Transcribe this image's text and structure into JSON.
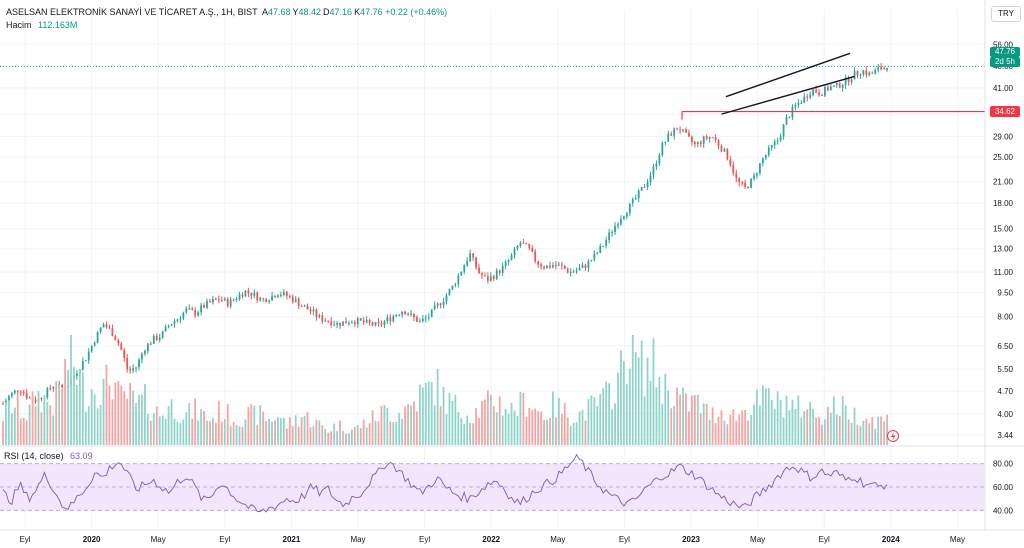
{
  "header": {
    "symbol": "ASELSAN ELEKTRONİK SANAYİ VE TİCARET A.Ş., 1H, BIST",
    "ohlc": [
      {
        "label": "A",
        "value": "47.68"
      },
      {
        "label": "Y",
        "value": "48.42"
      },
      {
        "label": "D",
        "value": "47.16"
      },
      {
        "label": "K",
        "value": "47.76"
      }
    ],
    "change": "+0.22 (+0.46%)",
    "volume_label": "Hacim",
    "volume_value": "112.163M",
    "currency": "TRY"
  },
  "rsi": {
    "label": "RSI (14, close)",
    "value": "63.09",
    "levels": [
      80,
      60,
      40
    ]
  },
  "price_tags": {
    "last": "47.76",
    "countdown": "2d 5h",
    "resistance": "34.62"
  },
  "colors": {
    "up": "#26a69a",
    "down": "#ef5350",
    "vol_up": "#8fd3c9",
    "vol_down": "#f5a3a3",
    "rsi_line": "#7e57c2",
    "rsi_band": "#f3e5fb",
    "resistance": "#f23645",
    "last": "#089981"
  },
  "chart_data": {
    "type": "candlestick",
    "scale": "log",
    "ylim": [
      3.2,
      62
    ],
    "y_ticks": [
      "56.00",
      "48.00",
      "41.00",
      "34.00",
      "29.00",
      "25.00",
      "21.00",
      "18.00",
      "15.00",
      "13.00",
      "11.00",
      "9.50",
      "8.00",
      "6.50",
      "5.50",
      "4.70",
      "4.00",
      "3.44"
    ],
    "y_tick_values": [
      56,
      48,
      41,
      34,
      29,
      25,
      21,
      18,
      15,
      13,
      11,
      9.5,
      8,
      6.5,
      5.5,
      4.7,
      4,
      3.44
    ],
    "x_ticks": [
      {
        "label": "Eyl",
        "bold": false
      },
      {
        "label": "2020",
        "bold": true
      },
      {
        "label": "May",
        "bold": false
      },
      {
        "label": "Eyl",
        "bold": false
      },
      {
        "label": "2021",
        "bold": true
      },
      {
        "label": "May",
        "bold": false
      },
      {
        "label": "Eyl",
        "bold": false
      },
      {
        "label": "2022",
        "bold": true
      },
      {
        "label": "May",
        "bold": false
      },
      {
        "label": "Eyl",
        "bold": false
      },
      {
        "label": "2023",
        "bold": true
      },
      {
        "label": "May",
        "bold": false
      },
      {
        "label": "Eyl",
        "bold": false
      },
      {
        "label": "2024",
        "bold": true
      },
      {
        "label": "May",
        "bold": false
      }
    ],
    "price_path": [
      4.3,
      4.6,
      4.8,
      4.5,
      4.4,
      4.6,
      4.9,
      4.8,
      5.0,
      5.5,
      6.0,
      6.8,
      7.6,
      7.2,
      6.5,
      5.4,
      5.6,
      6.4,
      6.8,
      7.0,
      7.6,
      7.9,
      8.4,
      8.2,
      8.6,
      8.9,
      9.1,
      8.8,
      9.2,
      9.6,
      9.4,
      9.0,
      9.2,
      9.5,
      9.3,
      9.0,
      8.6,
      8.3,
      7.9,
      7.8,
      7.6,
      7.7,
      7.8,
      7.7,
      7.6,
      7.5,
      7.8,
      8.1,
      8.4,
      8.0,
      7.7,
      8.0,
      8.6,
      9.2,
      10.0,
      11.2,
      12.5,
      11.0,
      10.4,
      10.8,
      11.4,
      12.3,
      13.6,
      13.0,
      11.8,
      11.4,
      11.6,
      11.4,
      11.0,
      11.2,
      11.6,
      12.4,
      13.4,
      14.8,
      16.2,
      17.4,
      18.8,
      20.6,
      23.0,
      27.0,
      29.5,
      31.0,
      28.8,
      27.2,
      28.4,
      29.0,
      27.0,
      24.8,
      21.0,
      20.0,
      21.5,
      24.5,
      26.5,
      28.5,
      33.0,
      36.0,
      38.0,
      40.5,
      39.5,
      41.0,
      41.5,
      43.0,
      45.0,
      46.5,
      45.0,
      47.0,
      47.76
    ],
    "volume_path": [
      0.3,
      0.4,
      0.35,
      0.3,
      0.5,
      0.45,
      0.4,
      0.6,
      0.9,
      0.7,
      0.5,
      0.6,
      0.55,
      0.7,
      0.45,
      0.5,
      0.4,
      0.45,
      0.35,
      0.3,
      0.4,
      0.35,
      0.3,
      0.35,
      0.3,
      0.25,
      0.35,
      0.3,
      0.25,
      0.3,
      0.3,
      0.3,
      0.25,
      0.3,
      0.2,
      0.25,
      0.3,
      0.25,
      0.2,
      0.15,
      0.2,
      0.18,
      0.15,
      0.2,
      0.25,
      0.3,
      0.35,
      0.3,
      0.35,
      0.4,
      0.5,
      0.55,
      0.6,
      0.45,
      0.4,
      0.35,
      0.3,
      0.35,
      0.4,
      0.45,
      0.4,
      0.35,
      0.4,
      0.45,
      0.35,
      0.3,
      0.4,
      0.35,
      0.3,
      0.3,
      0.35,
      0.4,
      0.45,
      0.55,
      0.7,
      1.0,
      0.85,
      0.75,
      0.8,
      0.6,
      0.55,
      0.5,
      0.4,
      0.45,
      0.35,
      0.3,
      0.35,
      0.3,
      0.3,
      0.35,
      0.4,
      0.45,
      0.5,
      0.4,
      0.45,
      0.35,
      0.4,
      0.35,
      0.3,
      0.35,
      0.4,
      0.35,
      0.3,
      0.3,
      0.25,
      0.25,
      0.25
    ],
    "rsi_path": [
      55,
      48,
      62,
      50,
      58,
      70,
      60,
      45,
      42,
      52,
      60,
      72,
      68,
      78,
      82,
      70,
      58,
      62,
      66,
      60,
      55,
      65,
      70,
      60,
      48,
      52,
      64,
      58,
      50,
      45,
      40,
      38,
      42,
      45,
      50,
      48,
      52,
      60,
      55,
      58,
      48,
      45,
      52,
      55,
      65,
      72,
      82,
      78,
      70,
      62,
      55,
      60,
      68,
      60,
      55,
      52,
      50,
      56,
      62,
      66,
      60,
      50,
      46,
      52,
      58,
      62,
      66,
      72,
      80,
      85,
      75,
      65,
      58,
      52,
      48,
      45,
      50,
      58,
      64,
      70,
      72,
      78,
      74,
      70,
      64,
      58,
      52,
      48,
      44,
      42,
      50,
      56,
      62,
      70,
      76,
      78,
      72,
      68,
      74,
      70,
      72,
      66,
      70,
      64,
      62,
      60,
      63.09
    ],
    "resistance_level": 34.62,
    "channel": {
      "lower": [
        [
          0.81,
          34.0
        ],
        [
          0.96,
          44.5
        ]
      ],
      "upper": [
        [
          0.815,
          38.5
        ],
        [
          0.955,
          52.5
        ]
      ]
    }
  }
}
